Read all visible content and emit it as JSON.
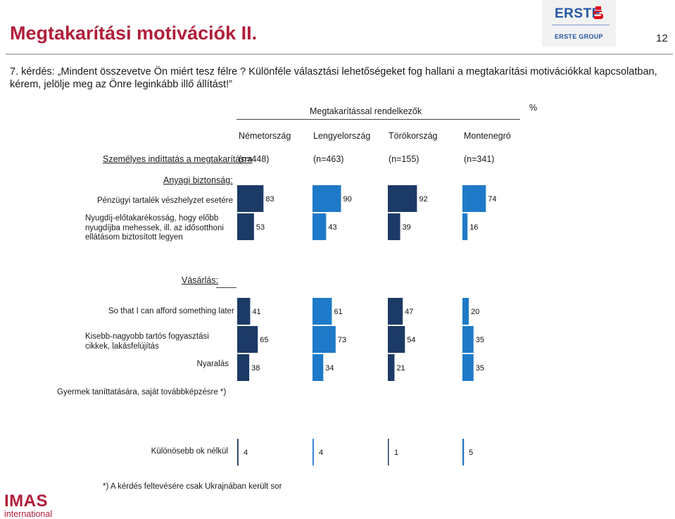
{
  "title": "Megtakarítási motivációk II.",
  "page_number": "12",
  "question": "7. kérdés: „Mindent összevetve Ön miért tesz félre ? Különféle választási lehetőségeket fog hallani a megtakarítási motivációkkal kapcsolatban, kérem, jelölje meg az Önre leginkább illő állítást!”",
  "logos": {
    "erste": {
      "word": "ERSTE",
      "group": "ERSTE GROUP"
    },
    "imas": {
      "word": "IMAS",
      "sub": "international"
    }
  },
  "colors": {
    "title": "#b01e3a",
    "navy": "#1c3a66",
    "blue": "#1e7ac8"
  },
  "chart_data": {
    "type": "bar",
    "unit": "%",
    "group_header": "Megtakarítással rendelkezők",
    "row_header": "Személyes indíttatás a megtakarításra",
    "columns": [
      {
        "name": "Németország",
        "n": "(n=448)",
        "color": "#1c3a66"
      },
      {
        "name": "Lengyelország",
        "n": "(n=463)",
        "color": "#1e7ac8"
      },
      {
        "name": "Törökország",
        "n": "(n=155)",
        "color": "#1c3a66"
      },
      {
        "name": "Montenegró",
        "n": "(n=341)",
        "color": "#1e7ac8"
      }
    ],
    "sections": [
      {
        "label": "Anyagi biztonság:"
      },
      {
        "label": "Vásárlás:"
      }
    ],
    "rows": [
      {
        "label": "Pénzügyi tartalék vészhelyzet esetére",
        "values": [
          83,
          90,
          92,
          74
        ]
      },
      {
        "label": "Nyugdíj-előtakarékosság, hogy előbb nyugdíjba mehessek, ill. az idősotthoni ellátásom biztosított legyen",
        "values": [
          53,
          43,
          39,
          16
        ]
      },
      {
        "label": "So that I can afford something later on",
        "values": [
          41,
          61,
          47,
          20
        ]
      },
      {
        "label": "Kisebb-nagyobb tartós fogyasztási cikkek, lakásfelújítás",
        "values": [
          65,
          73,
          54,
          35
        ]
      },
      {
        "label": "Nyaralás",
        "values": [
          38,
          34,
          21,
          35
        ]
      },
      {
        "label": "Gyermek taníttatására, saját továbbképzésre *)",
        "values": [
          null,
          null,
          null,
          null
        ]
      },
      {
        "label": "Különösebb ok nélkül",
        "values": [
          4,
          4,
          1,
          5
        ]
      }
    ],
    "footnote": "*) A kérdés feltevésére csak Ukrajnában került sor"
  }
}
